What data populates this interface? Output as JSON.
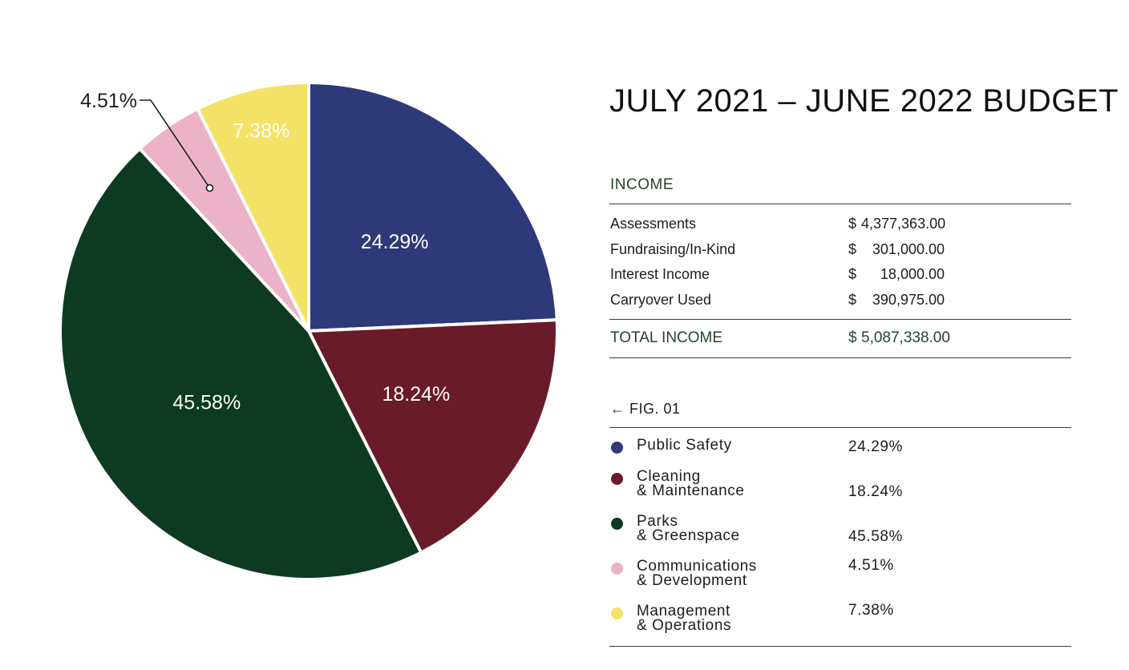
{
  "budget": {
    "title": "JULY 2021 – JUNE 2022 BUDGET",
    "income": {
      "section_label": "INCOME",
      "rows": [
        {
          "label": "Assessments",
          "currency": "$",
          "amount": "4,377,363.00"
        },
        {
          "label": "Fundraising/In-Kind",
          "currency": "$",
          "amount": "301,000.00"
        },
        {
          "label": "Interest Income",
          "currency": "$",
          "amount": "18,000.00"
        },
        {
          "label": "Carryover Used",
          "currency": "$",
          "amount": "390,975.00"
        }
      ],
      "total": {
        "label": "TOTAL INCOME",
        "currency": "$",
        "amount": "5,087,338.00"
      }
    },
    "figure_label": "← FIG. 01",
    "legend": [
      {
        "line1": "Public Safety",
        "line2": "",
        "percent": "24.29%"
      },
      {
        "line1": "Cleaning",
        "line2": "& Maintenance",
        "percent": "18.24%"
      },
      {
        "line1": "Parks",
        "line2": "& Greenspace",
        "percent": "45.58%"
      },
      {
        "line1": "Communications",
        "line2": "& Development",
        "percent": "4.51%"
      },
      {
        "line1": "Management",
        "line2": "& Operations",
        "percent": "7.38%"
      }
    ]
  },
  "chart_data": {
    "type": "pie",
    "title": "",
    "slices": [
      {
        "name": "Public Safety",
        "value": 24.29,
        "label": "24.29%",
        "color": "#2e397a"
      },
      {
        "name": "Cleaning & Maintenance",
        "value": 18.24,
        "label": "18.24%",
        "color": "#6a1b28"
      },
      {
        "name": "Parks & Greenspace",
        "value": 45.58,
        "label": "45.58%",
        "color": "#0c3a22"
      },
      {
        "name": "Communications & Development",
        "value": 4.51,
        "label": "4.51%",
        "color": "#ebb2c8"
      },
      {
        "name": "Management & Operations",
        "value": 7.38,
        "label": "7.38%",
        "color": "#f4e266"
      }
    ],
    "start": "top",
    "direction": "clockwise",
    "callout_slice": "Communications & Development",
    "legend_position": "right"
  }
}
